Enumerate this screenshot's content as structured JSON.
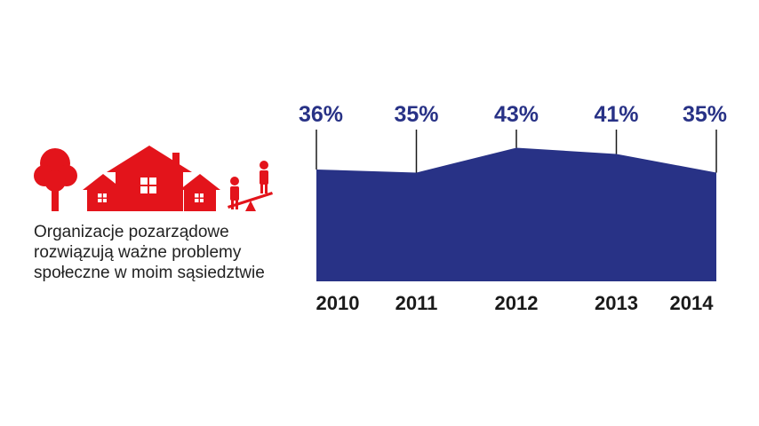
{
  "caption_lines": [
    "Organizacje pozarządowe",
    "rozwiązują ważne problemy",
    "społeczne w moim sąsiedztwie"
  ],
  "colors": {
    "area": "#283286",
    "label": "#283286",
    "icon": "#e3141b",
    "text": "#222222"
  },
  "illustration_icons": [
    "tree-icon",
    "house-icon",
    "seesaw-people-icon"
  ],
  "chart_data": {
    "type": "area",
    "x": [
      "2010",
      "2011",
      "2012",
      "2013",
      "2014"
    ],
    "values": [
      36,
      35,
      43,
      41,
      35
    ],
    "value_labels": [
      "36%",
      "35%",
      "43%",
      "41%",
      "35%"
    ],
    "unit": "%",
    "ylim": [
      0,
      50
    ],
    "grid": false,
    "legend": "none"
  }
}
